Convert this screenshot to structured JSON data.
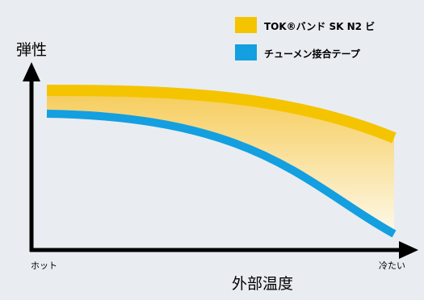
{
  "axes": {
    "y_label": "弾性",
    "x_label": "外部温度",
    "x_start": "ホット",
    "x_end": "冷たい"
  },
  "legend": [
    {
      "label": "TOK®バンド SK N2 ビ",
      "color": "#f5c400"
    },
    {
      "label": "チューメン接合テープ",
      "color": "#149fe0"
    }
  ],
  "colors": {
    "background": "#e9edf1",
    "axis": "#000000",
    "fill_top": "#f6cc5a",
    "fill_bottom": "#fdf8e8"
  }
}
